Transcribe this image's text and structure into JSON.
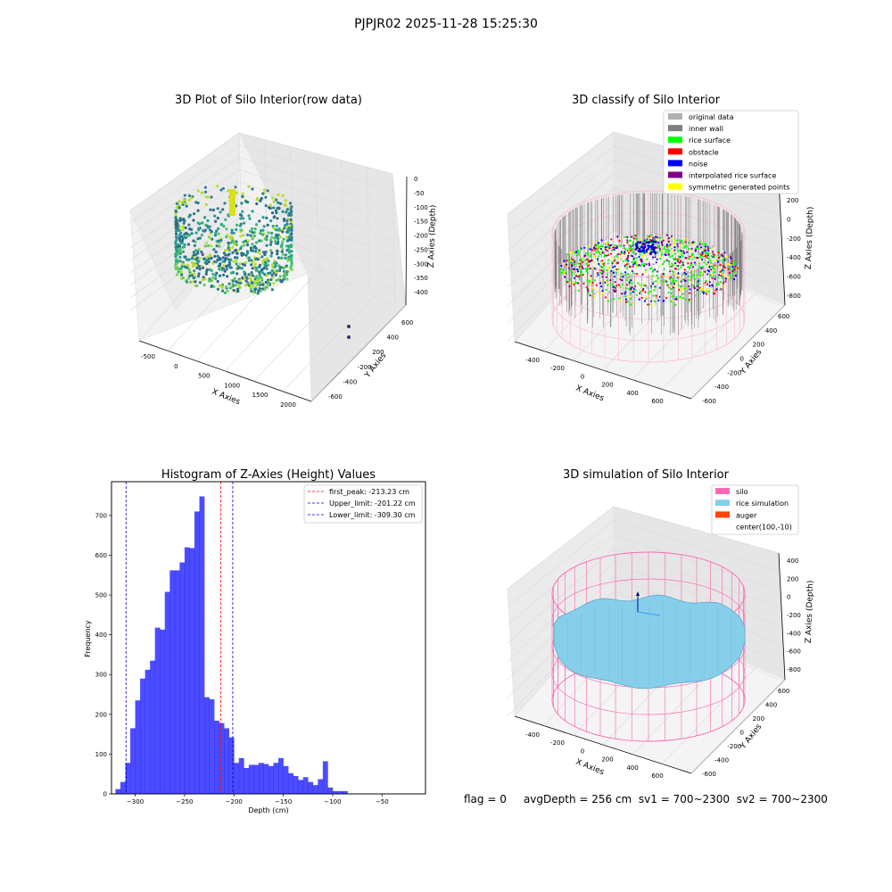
{
  "suptitle": "PJPJR02 2025-11-28 15:25:30",
  "footer": {
    "flag": "flag = 0",
    "avg": "avgDepth = 256 cm",
    "sv1": "sv1 = 700~2300",
    "sv2": "sv2 = 700~2300"
  },
  "panel1": {
    "title": "3D Plot of Silo Interior(row data)",
    "x_ticks": [
      "-500",
      "0",
      "500",
      "1000",
      "1500",
      "2000"
    ],
    "x_label": "X Axies",
    "y_ticks": [
      "600",
      "400",
      "200",
      "-200",
      "-400",
      "-600"
    ],
    "y_label": "Y Axies",
    "z_ticks": [
      "0",
      "-50",
      "-100",
      "-150",
      "-200",
      "-250",
      "-300",
      "-350",
      "-400"
    ],
    "z_label": "Z Axies (Depth)"
  },
  "panel2": {
    "title": "3D classify of Silo Interior",
    "legend": [
      {
        "label": "original data",
        "color": "#b0b0b0"
      },
      {
        "label": "inner wall",
        "color": "#808080"
      },
      {
        "label": "rice surface",
        "color": "#00ff00"
      },
      {
        "label": "obstacle",
        "color": "#ff0000"
      },
      {
        "label": "noise",
        "color": "#0000ff"
      },
      {
        "label": "interpolated rice surface",
        "color": "#800080"
      },
      {
        "label": "symmetric generated points",
        "color": "#ffff00"
      }
    ],
    "x_ticks": [
      "-400",
      "-200",
      "0",
      "200",
      "400",
      "600"
    ],
    "x_label": "X Axies",
    "y_ticks": [
      "600",
      "400",
      "200",
      "0",
      "-200",
      "-400",
      "-600"
    ],
    "y_label": "Y Axies",
    "z_ticks": [
      "200",
      "0",
      "-200",
      "-400",
      "-600",
      "-800"
    ],
    "z_label": "Z Axies (Depth)"
  },
  "panel4": {
    "title": "3D simulation of Silo Interior",
    "legend": [
      {
        "label": "silo",
        "color": "#ff69b4"
      },
      {
        "label": "rice simulation",
        "color": "#87ceeb"
      },
      {
        "label": "auger",
        "color": "#ff4500"
      },
      {
        "label": "center(100,-10)",
        "color": ""
      }
    ],
    "x_ticks": [
      "-400",
      "-200",
      "0",
      "200",
      "400",
      "600"
    ],
    "x_label": "X Axies",
    "y_ticks": [
      "600",
      "400",
      "200",
      "0",
      "-200",
      "-400",
      "-600"
    ],
    "y_label": "Y Axies",
    "z_ticks": [
      "400",
      "200",
      "0",
      "-200",
      "-400",
      "-600",
      "-800"
    ],
    "z_label": "Z Axies (Depth)"
  },
  "chart_data": {
    "type": "bar",
    "title": "Histogram of Z-Axies (Height) Values",
    "xlabel": "Depth (cm)",
    "ylabel": "Frequency",
    "xlim": [
      -324,
      -6
    ],
    "ylim": [
      0,
      785
    ],
    "x_ticks": [
      -300,
      -250,
      -200,
      -150,
      -100,
      -50
    ],
    "y_ticks": [
      0,
      100,
      200,
      300,
      400,
      500,
      600,
      700
    ],
    "bin_start": -320,
    "bin_width": 5,
    "values": [
      12,
      30,
      78,
      165,
      235,
      290,
      312,
      335,
      418,
      413,
      508,
      562,
      562,
      582,
      620,
      618,
      710,
      748,
      243,
      238,
      184,
      178,
      165,
      142,
      78,
      90,
      65,
      73,
      73,
      78,
      75,
      70,
      78,
      90,
      70,
      52,
      45,
      35,
      42,
      30,
      22,
      37,
      82,
      16,
      7,
      7,
      7
    ],
    "color": "#0000ff",
    "vlines": [
      {
        "label": "first_peak: -213.23 cm",
        "x": -213.23,
        "color": "#ff0000"
      },
      {
        "label": "Upper_limit: -201.22 cm",
        "x": -201.22,
        "color": "#0000cc"
      },
      {
        "label": "Lower_limit: -309.30 cm",
        "x": -309.3,
        "color": "#0000cc"
      }
    ],
    "legend_position": "top-right"
  }
}
